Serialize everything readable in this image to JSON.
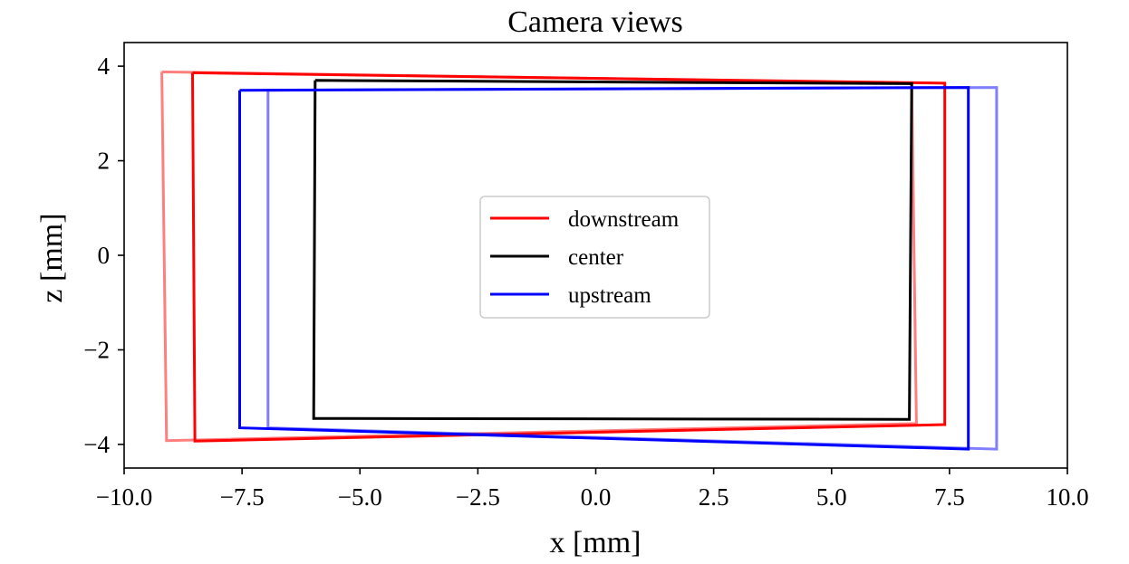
{
  "chart_data": {
    "type": "line",
    "title": "Camera views",
    "xlabel": "x [mm]",
    "ylabel": "z [mm]",
    "xlim": [
      -10.0,
      10.0
    ],
    "ylim": [
      -4.5,
      4.5
    ],
    "xticks": [
      -10.0,
      -7.5,
      -5.0,
      -2.5,
      0.0,
      2.5,
      5.0,
      7.5,
      10.0
    ],
    "xtick_labels": [
      "−10.0",
      "−7.5",
      "−5.0",
      "−2.5",
      "0.0",
      "2.5",
      "5.0",
      "7.5",
      "10.0"
    ],
    "yticks": [
      4,
      2,
      0,
      -2,
      -4
    ],
    "ytick_labels": [
      "4",
      "2",
      "0",
      "−2",
      "−4"
    ],
    "grid": false,
    "legend": {
      "placement": "center",
      "entries": [
        {
          "label": "downstream",
          "color": "#ff0000"
        },
        {
          "label": "center",
          "color": "#000000"
        },
        {
          "label": "upstream",
          "color": "#0000ff"
        }
      ]
    },
    "series": [
      {
        "name": "downstream",
        "color": "#ff0000",
        "opacity": 0.5,
        "in_legend": false,
        "points": [
          [
            -9.2,
            3.88
          ],
          [
            6.7,
            3.64
          ],
          [
            6.8,
            -3.56
          ],
          [
            -9.1,
            -3.92
          ],
          [
            -9.2,
            3.88
          ]
        ]
      },
      {
        "name": "downstream",
        "color": "#ff0000",
        "opacity": 1.0,
        "in_legend": true,
        "points": [
          [
            -8.55,
            3.86
          ],
          [
            7.4,
            3.64
          ],
          [
            7.4,
            -3.58
          ],
          [
            -8.5,
            -3.93
          ],
          [
            -8.55,
            3.86
          ]
        ]
      },
      {
        "name": "center",
        "color": "#000000",
        "opacity": 1.0,
        "in_legend": true,
        "points": [
          [
            -5.95,
            3.7
          ],
          [
            6.7,
            3.63
          ],
          [
            6.65,
            -3.47
          ],
          [
            -5.98,
            -3.45
          ],
          [
            -5.95,
            3.7
          ]
        ]
      },
      {
        "name": "upstream",
        "color": "#0000ff",
        "opacity": 1.0,
        "in_legend": true,
        "points": [
          [
            -7.55,
            3.49
          ],
          [
            7.9,
            3.55
          ],
          [
            7.9,
            -4.1
          ],
          [
            -7.55,
            -3.65
          ],
          [
            -7.55,
            3.49
          ]
        ]
      },
      {
        "name": "upstream",
        "color": "#0000ff",
        "opacity": 0.5,
        "in_legend": false,
        "points": [
          [
            -6.95,
            3.49
          ],
          [
            8.5,
            3.55
          ],
          [
            8.5,
            -4.1
          ],
          [
            -6.95,
            -3.65
          ],
          [
            -6.95,
            3.49
          ]
        ]
      }
    ]
  }
}
